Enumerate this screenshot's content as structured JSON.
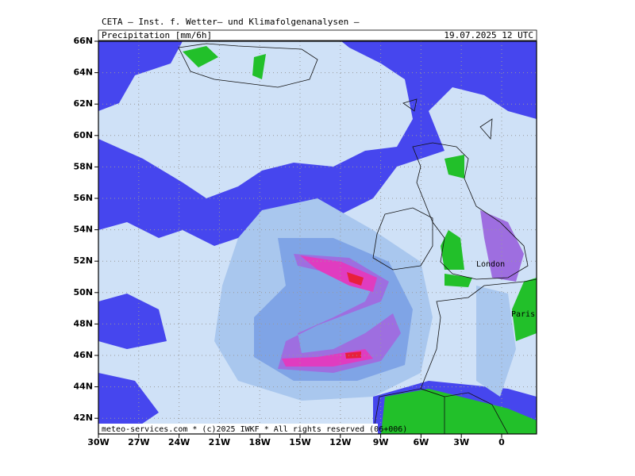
{
  "header": {
    "title": "CETA — Inst. f. Wetter— und Klimafolgenanalysen —",
    "product": "Precipitation [mm/6h]",
    "valid": "19.07.2025 12 UTC"
  },
  "map": {
    "lat_labels": [
      "66N",
      "64N",
      "62N",
      "60N",
      "58N",
      "56N",
      "54N",
      "52N",
      "50N",
      "48N",
      "46N",
      "44N",
      "42N"
    ],
    "lon_labels": [
      "30W",
      "27W",
      "24W",
      "21W",
      "18W",
      "15W",
      "12W",
      "9W",
      "6W",
      "3W",
      "0"
    ],
    "places": [
      "London",
      "Paris"
    ],
    "credit": "meteo-services.com * (c)2025 IWKF * All rights reserved (06+006)"
  }
}
